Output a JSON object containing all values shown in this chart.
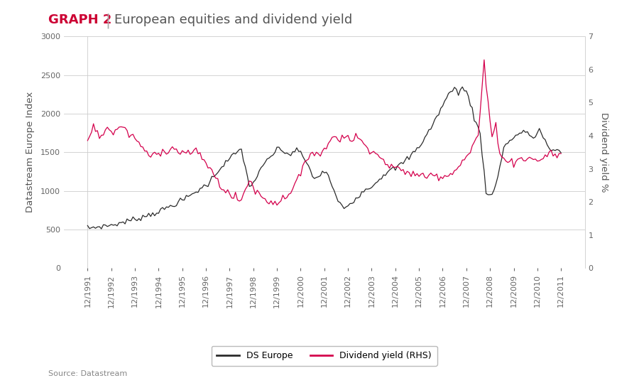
{
  "title_red": "GRAPH 2",
  "title_separator": "|",
  "title_gray": "European equities and dividend yield",
  "ylabel_left": "Datastream Europe Index",
  "ylabel_right": "Dividend yield %",
  "source": "Source: Datastream",
  "legend_entries": [
    "DS Europe",
    "Dividend yield (RHS)"
  ],
  "line_colors": [
    "#2b2b2b",
    "#d4004c"
  ],
  "ylim_left": [
    0,
    3000
  ],
  "ylim_right": [
    0,
    7
  ],
  "yticks_left": [
    0,
    500,
    1000,
    1500,
    2000,
    2500,
    3000
  ],
  "yticks_right": [
    0,
    1,
    2,
    3,
    4,
    5,
    6,
    7
  ],
  "background_color": "#ffffff",
  "grid_color": "#cccccc",
  "title_fontsize": 13,
  "axis_label_fontsize": 9.5,
  "tick_fontsize": 8
}
